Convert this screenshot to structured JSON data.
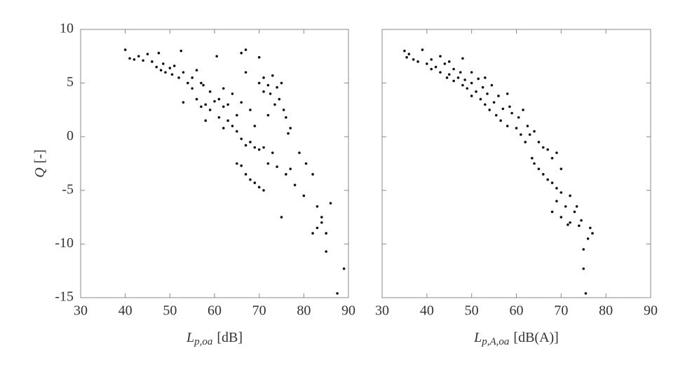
{
  "chart_data": [
    {
      "type": "scatter",
      "color": "#111",
      "xlim": [
        30,
        90
      ],
      "ylim": [
        -15,
        10
      ],
      "xticks": [
        30,
        40,
        50,
        60,
        70,
        80,
        90
      ],
      "yticks": [
        -15,
        -10,
        -5,
        0,
        5,
        10
      ],
      "show_ytick_labels": true,
      "xlabel": {
        "main": "L",
        "sub": "p,oa",
        "unit": "[dB]"
      },
      "ylabel": {
        "main": "Q",
        "unit": "[-]"
      },
      "x": [
        40,
        41,
        42,
        43,
        44,
        45,
        46,
        47,
        47.5,
        48,
        48.5,
        49,
        50,
        50.5,
        51,
        52,
        52.5,
        53,
        54,
        55,
        56,
        56,
        57,
        57.5,
        58,
        59,
        60,
        60.5,
        61,
        62,
        62,
        63,
        64,
        65,
        66,
        67,
        68,
        69,
        70,
        71,
        53,
        55,
        57,
        59,
        61,
        63,
        64,
        65,
        66,
        67,
        67,
        68,
        69,
        70,
        66,
        62,
        58,
        70,
        71,
        72,
        72.5,
        73,
        73.5,
        74,
        74.5,
        75,
        75.5,
        76,
        76.5,
        77,
        72,
        73,
        71,
        65,
        66,
        67,
        68,
        69,
        70,
        71,
        72,
        74,
        75,
        76,
        77,
        78,
        79,
        80,
        80.5,
        82,
        82,
        83,
        83,
        84,
        84,
        85,
        85,
        86,
        87.5,
        89
      ],
      "values": [
        8.1,
        7.3,
        7.2,
        7.5,
        7.1,
        7.7,
        7.0,
        6.5,
        7.8,
        6.2,
        6.8,
        6.0,
        6.4,
        5.8,
        6.6,
        5.5,
        8.0,
        3.2,
        5.0,
        4.5,
        3.5,
        6.2,
        2.8,
        4.8,
        3.0,
        2.5,
        3.3,
        7.5,
        1.8,
        2.8,
        4.5,
        1.5,
        1.0,
        0.5,
        -0.2,
        -0.8,
        -0.5,
        -1.0,
        -1.2,
        -1.0,
        6.0,
        5.5,
        5.0,
        4.2,
        3.5,
        3.0,
        4.0,
        2.0,
        7.8,
        8.1,
        6.0,
        2.5,
        1.0,
        7.4,
        3.2,
        0.8,
        1.5,
        5.0,
        5.5,
        4.8,
        4.0,
        5.7,
        3.0,
        4.6,
        3.5,
        5.0,
        2.5,
        1.8,
        0.3,
        0.8,
        2.0,
        -1.5,
        4.2,
        -2.5,
        -2.7,
        -3.5,
        -4.0,
        -4.3,
        -4.7,
        -5.0,
        -2.5,
        -2.8,
        -7.5,
        -3.5,
        -3.0,
        -4.5,
        -1.5,
        -5.5,
        -2.5,
        -3.5,
        -9.0,
        -8.5,
        -6.5,
        -7.5,
        -8.0,
        -9.0,
        -10.7,
        -6.2,
        -14.6,
        -12.3
      ]
    },
    {
      "type": "scatter",
      "color": "#111",
      "xlim": [
        30,
        90
      ],
      "ylim": [
        -15,
        10
      ],
      "xticks": [
        30,
        40,
        50,
        60,
        70,
        80,
        90
      ],
      "yticks": [
        -15,
        -10,
        -5,
        0,
        5,
        10
      ],
      "show_ytick_labels": false,
      "xlabel": {
        "main": "L",
        "sub": "p,A,oa",
        "unit": "[dB(A)]"
      },
      "x": [
        35,
        35.5,
        36,
        37,
        38,
        39,
        40,
        41,
        41,
        42,
        43,
        44,
        44.5,
        45,
        46,
        46,
        47,
        47.5,
        48,
        48.5,
        49,
        50,
        50,
        51,
        51.5,
        52,
        52.5,
        53,
        53.5,
        54,
        54.5,
        55,
        55.5,
        56,
        56.5,
        57,
        58,
        58.5,
        59,
        60,
        60.5,
        61,
        61.5,
        62,
        62.5,
        63,
        63.5,
        64,
        65,
        66,
        67,
        68,
        69,
        70,
        43,
        45,
        48,
        50,
        53,
        58,
        64,
        65,
        66,
        67,
        68,
        69,
        70,
        68,
        69,
        70,
        71,
        71.5,
        72,
        73,
        73.5,
        74,
        74.5,
        75,
        75,
        75.5,
        76,
        76.5,
        77,
        72
      ],
      "values": [
        8.0,
        7.4,
        7.7,
        7.2,
        7.0,
        8.1,
        6.8,
        7.2,
        6.3,
        6.5,
        6.0,
        6.8,
        5.5,
        5.8,
        6.3,
        5.2,
        5.5,
        6.0,
        4.8,
        5.3,
        4.5,
        5.0,
        3.8,
        4.2,
        5.4,
        3.5,
        4.6,
        3.0,
        4.0,
        2.5,
        4.8,
        3.2,
        2.0,
        3.8,
        1.5,
        2.6,
        1.0,
        2.8,
        2.2,
        0.8,
        1.8,
        0.2,
        2.5,
        -0.5,
        1.0,
        0.2,
        -2.0,
        0.5,
        -0.5,
        -1.0,
        -1.2,
        -2.0,
        -1.5,
        -3.0,
        7.5,
        7.0,
        7.3,
        6.0,
        5.5,
        4.0,
        -2.5,
        -3.0,
        -3.5,
        -4.0,
        -4.3,
        -4.8,
        -5.2,
        -7.0,
        -6.0,
        -7.5,
        -6.5,
        -8.2,
        -5.5,
        -7.0,
        -6.5,
        -8.3,
        -7.8,
        -12.3,
        -10.5,
        -14.6,
        -9.5,
        -8.5,
        -9.0,
        -8.0
      ]
    }
  ]
}
